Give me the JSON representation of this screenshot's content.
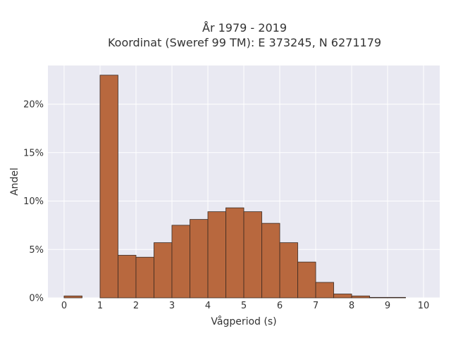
{
  "chart_data": {
    "type": "bar",
    "title_line1": "År 1979 - 2019",
    "title_line2": "Koordinat (Sweref 99 TM): E 373245, N 6271179",
    "xlabel": "Vågperiod (s)",
    "ylabel": "Andel",
    "bin_width": 0.5,
    "bin_starts": [
      0,
      0.5,
      1,
      1.5,
      2,
      2.5,
      3,
      3.5,
      4,
      4.5,
      5,
      5.5,
      6,
      6.5,
      7,
      7.5,
      8,
      8.5,
      9,
      9.5
    ],
    "values": [
      0.2,
      0,
      23.0,
      4.4,
      4.2,
      5.7,
      7.5,
      8.1,
      8.9,
      9.3,
      8.9,
      7.7,
      5.7,
      3.7,
      1.6,
      0.4,
      0.2,
      0.05,
      0.05,
      0
    ],
    "xlim": [
      -0.45,
      10.45
    ],
    "ylim": [
      0,
      24.0
    ],
    "xticks": [
      0,
      1,
      2,
      3,
      4,
      5,
      6,
      7,
      8,
      9,
      10
    ],
    "xtick_labels": [
      "0",
      "1",
      "2",
      "3",
      "4",
      "5",
      "6",
      "7",
      "8",
      "9",
      "10"
    ],
    "yticks": [
      0,
      5,
      10,
      15,
      20
    ],
    "ytick_labels": [
      "0%",
      "5%",
      "10%",
      "15%",
      "20%"
    ],
    "grid": true,
    "colors": {
      "bar_fill": "#b8683e",
      "bar_stroke": "#3a2a22",
      "plot_bg": "#e9e9f2",
      "grid": "#ffffff"
    }
  }
}
